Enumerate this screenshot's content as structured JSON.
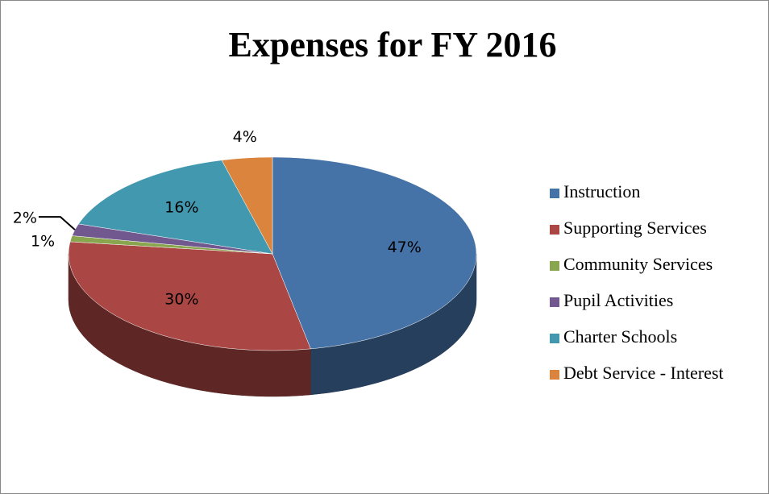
{
  "chart_data": {
    "type": "pie",
    "title": "Expenses for FY 2016",
    "categories": [
      "Instruction",
      "Supporting Services",
      "Community Services",
      "Pupil Activities",
      "Charter Schools",
      "Debt Service - Interest"
    ],
    "values": [
      47,
      30,
      1,
      2,
      16,
      4
    ],
    "value_labels": [
      "47%",
      "30%",
      "1%",
      "2%",
      "16%",
      "4%"
    ],
    "colors": [
      "#4572a7",
      "#aa4643",
      "#89a54e",
      "#71588f",
      "#4198af",
      "#db843d"
    ],
    "legend": "right",
    "3d": true
  }
}
